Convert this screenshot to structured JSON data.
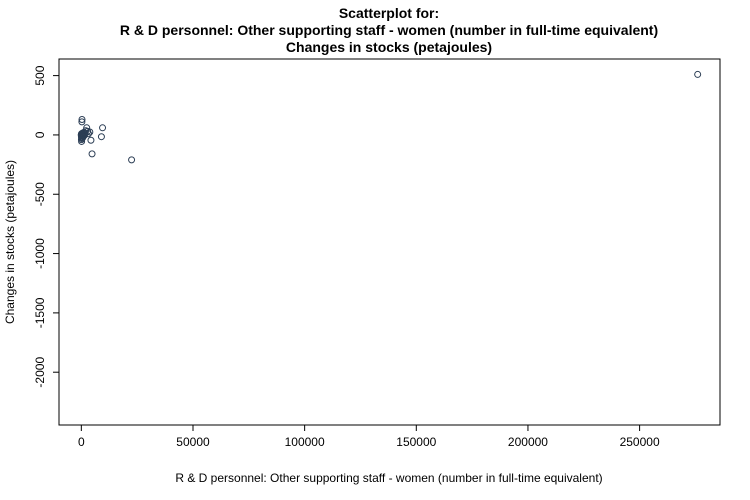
{
  "chart_data": {
    "type": "scatter",
    "title": "Scatterplot for:",
    "subtitle_lines": [
      "R & D personnel: Other supporting staff - women (number in full-time equivalent)",
      "Changes in stocks (petajoules)"
    ],
    "xlabel": "R & D personnel: Other supporting staff - women (number in full-time equivalent)",
    "ylabel": "Changes in stocks (petajoules)",
    "xlim": [
      -10000,
      286000
    ],
    "ylim": [
      -2445,
      640
    ],
    "xticks": [
      0,
      50000,
      100000,
      150000,
      200000,
      250000
    ],
    "yticks": [
      500,
      0,
      -500,
      -1000,
      -1500,
      -2000
    ],
    "grid": false,
    "legend": "none",
    "marker_color": "#2c3e55",
    "points": [
      [
        276000,
        510
      ],
      [
        22500,
        -210
      ],
      [
        9500,
        60
      ],
      [
        9000,
        -15
      ],
      [
        4800,
        -160
      ],
      [
        4300,
        -45
      ],
      [
        3800,
        25
      ],
      [
        3200,
        10
      ],
      [
        2800,
        30
      ],
      [
        2400,
        60
      ],
      [
        2000,
        35
      ],
      [
        1700,
        15
      ],
      [
        1500,
        5
      ],
      [
        1300,
        -5
      ],
      [
        1100,
        20
      ],
      [
        900,
        10
      ],
      [
        800,
        -15
      ],
      [
        700,
        5
      ],
      [
        600,
        -25
      ],
      [
        500,
        15
      ],
      [
        450,
        0
      ],
      [
        400,
        -10
      ],
      [
        350,
        5
      ],
      [
        300,
        130
      ],
      [
        250,
        110
      ],
      [
        200,
        -30
      ],
      [
        180,
        -5
      ],
      [
        150,
        10
      ],
      [
        120,
        -55
      ],
      [
        100,
        0
      ],
      [
        80,
        -20
      ],
      [
        60,
        8
      ],
      [
        50,
        -40
      ],
      [
        40,
        3
      ],
      [
        30,
        -10
      ],
      [
        20,
        0
      ],
      [
        10,
        -3
      ],
      [
        5,
        2
      ]
    ]
  }
}
